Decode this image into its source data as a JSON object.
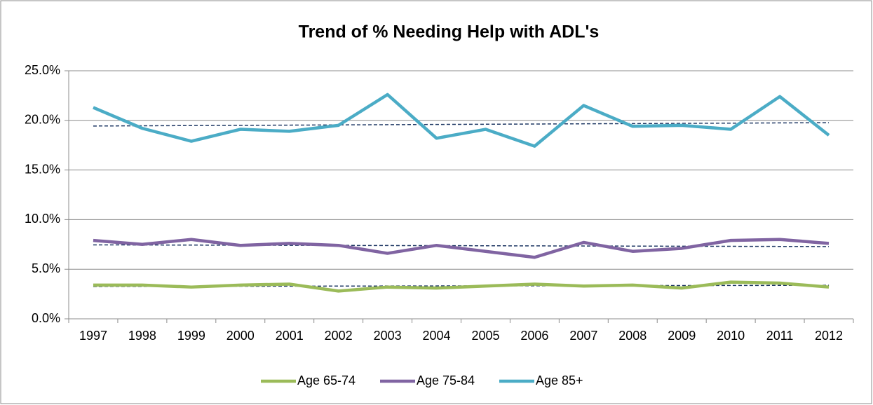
{
  "chart_data": {
    "type": "line",
    "title": "Trend of % Needing Help with ADL's",
    "categories": [
      "1997",
      "1998",
      "1999",
      "2000",
      "2001",
      "2002",
      "2003",
      "2004",
      "2005",
      "2006",
      "2007",
      "2008",
      "2009",
      "2010",
      "2011",
      "2012"
    ],
    "series": [
      {
        "name": "Age 65-74",
        "color": "#9bbb59",
        "values": [
          3.4,
          3.4,
          3.2,
          3.4,
          3.5,
          2.8,
          3.2,
          3.1,
          3.3,
          3.5,
          3.3,
          3.4,
          3.1,
          3.7,
          3.6,
          3.2
        ]
      },
      {
        "name": "Age 75-84",
        "color": "#8064a2",
        "values": [
          7.9,
          7.5,
          8.0,
          7.4,
          7.6,
          7.4,
          6.6,
          7.4,
          6.8,
          6.2,
          7.7,
          6.8,
          7.1,
          7.9,
          8.0,
          7.6
        ]
      },
      {
        "name": "Age 85+",
        "color": "#4bacc6",
        "values": [
          21.3,
          19.2,
          17.9,
          19.1,
          18.9,
          19.5,
          22.6,
          18.2,
          19.1,
          17.4,
          21.5,
          19.4,
          19.5,
          19.1,
          22.4,
          18.5
        ]
      }
    ],
    "trendline": true,
    "trendline_color": "#1f3864",
    "ylim": [
      0,
      25
    ],
    "yticks": [
      {
        "value": 0,
        "label": "0.0%"
      },
      {
        "value": 5,
        "label": "5.0%"
      },
      {
        "value": 10,
        "label": "10.0%"
      },
      {
        "value": 15,
        "label": "15.0%"
      },
      {
        "value": 20,
        "label": "20.0%"
      },
      {
        "value": 25,
        "label": "25.0%"
      }
    ],
    "grid": true,
    "legend": "bottom"
  }
}
